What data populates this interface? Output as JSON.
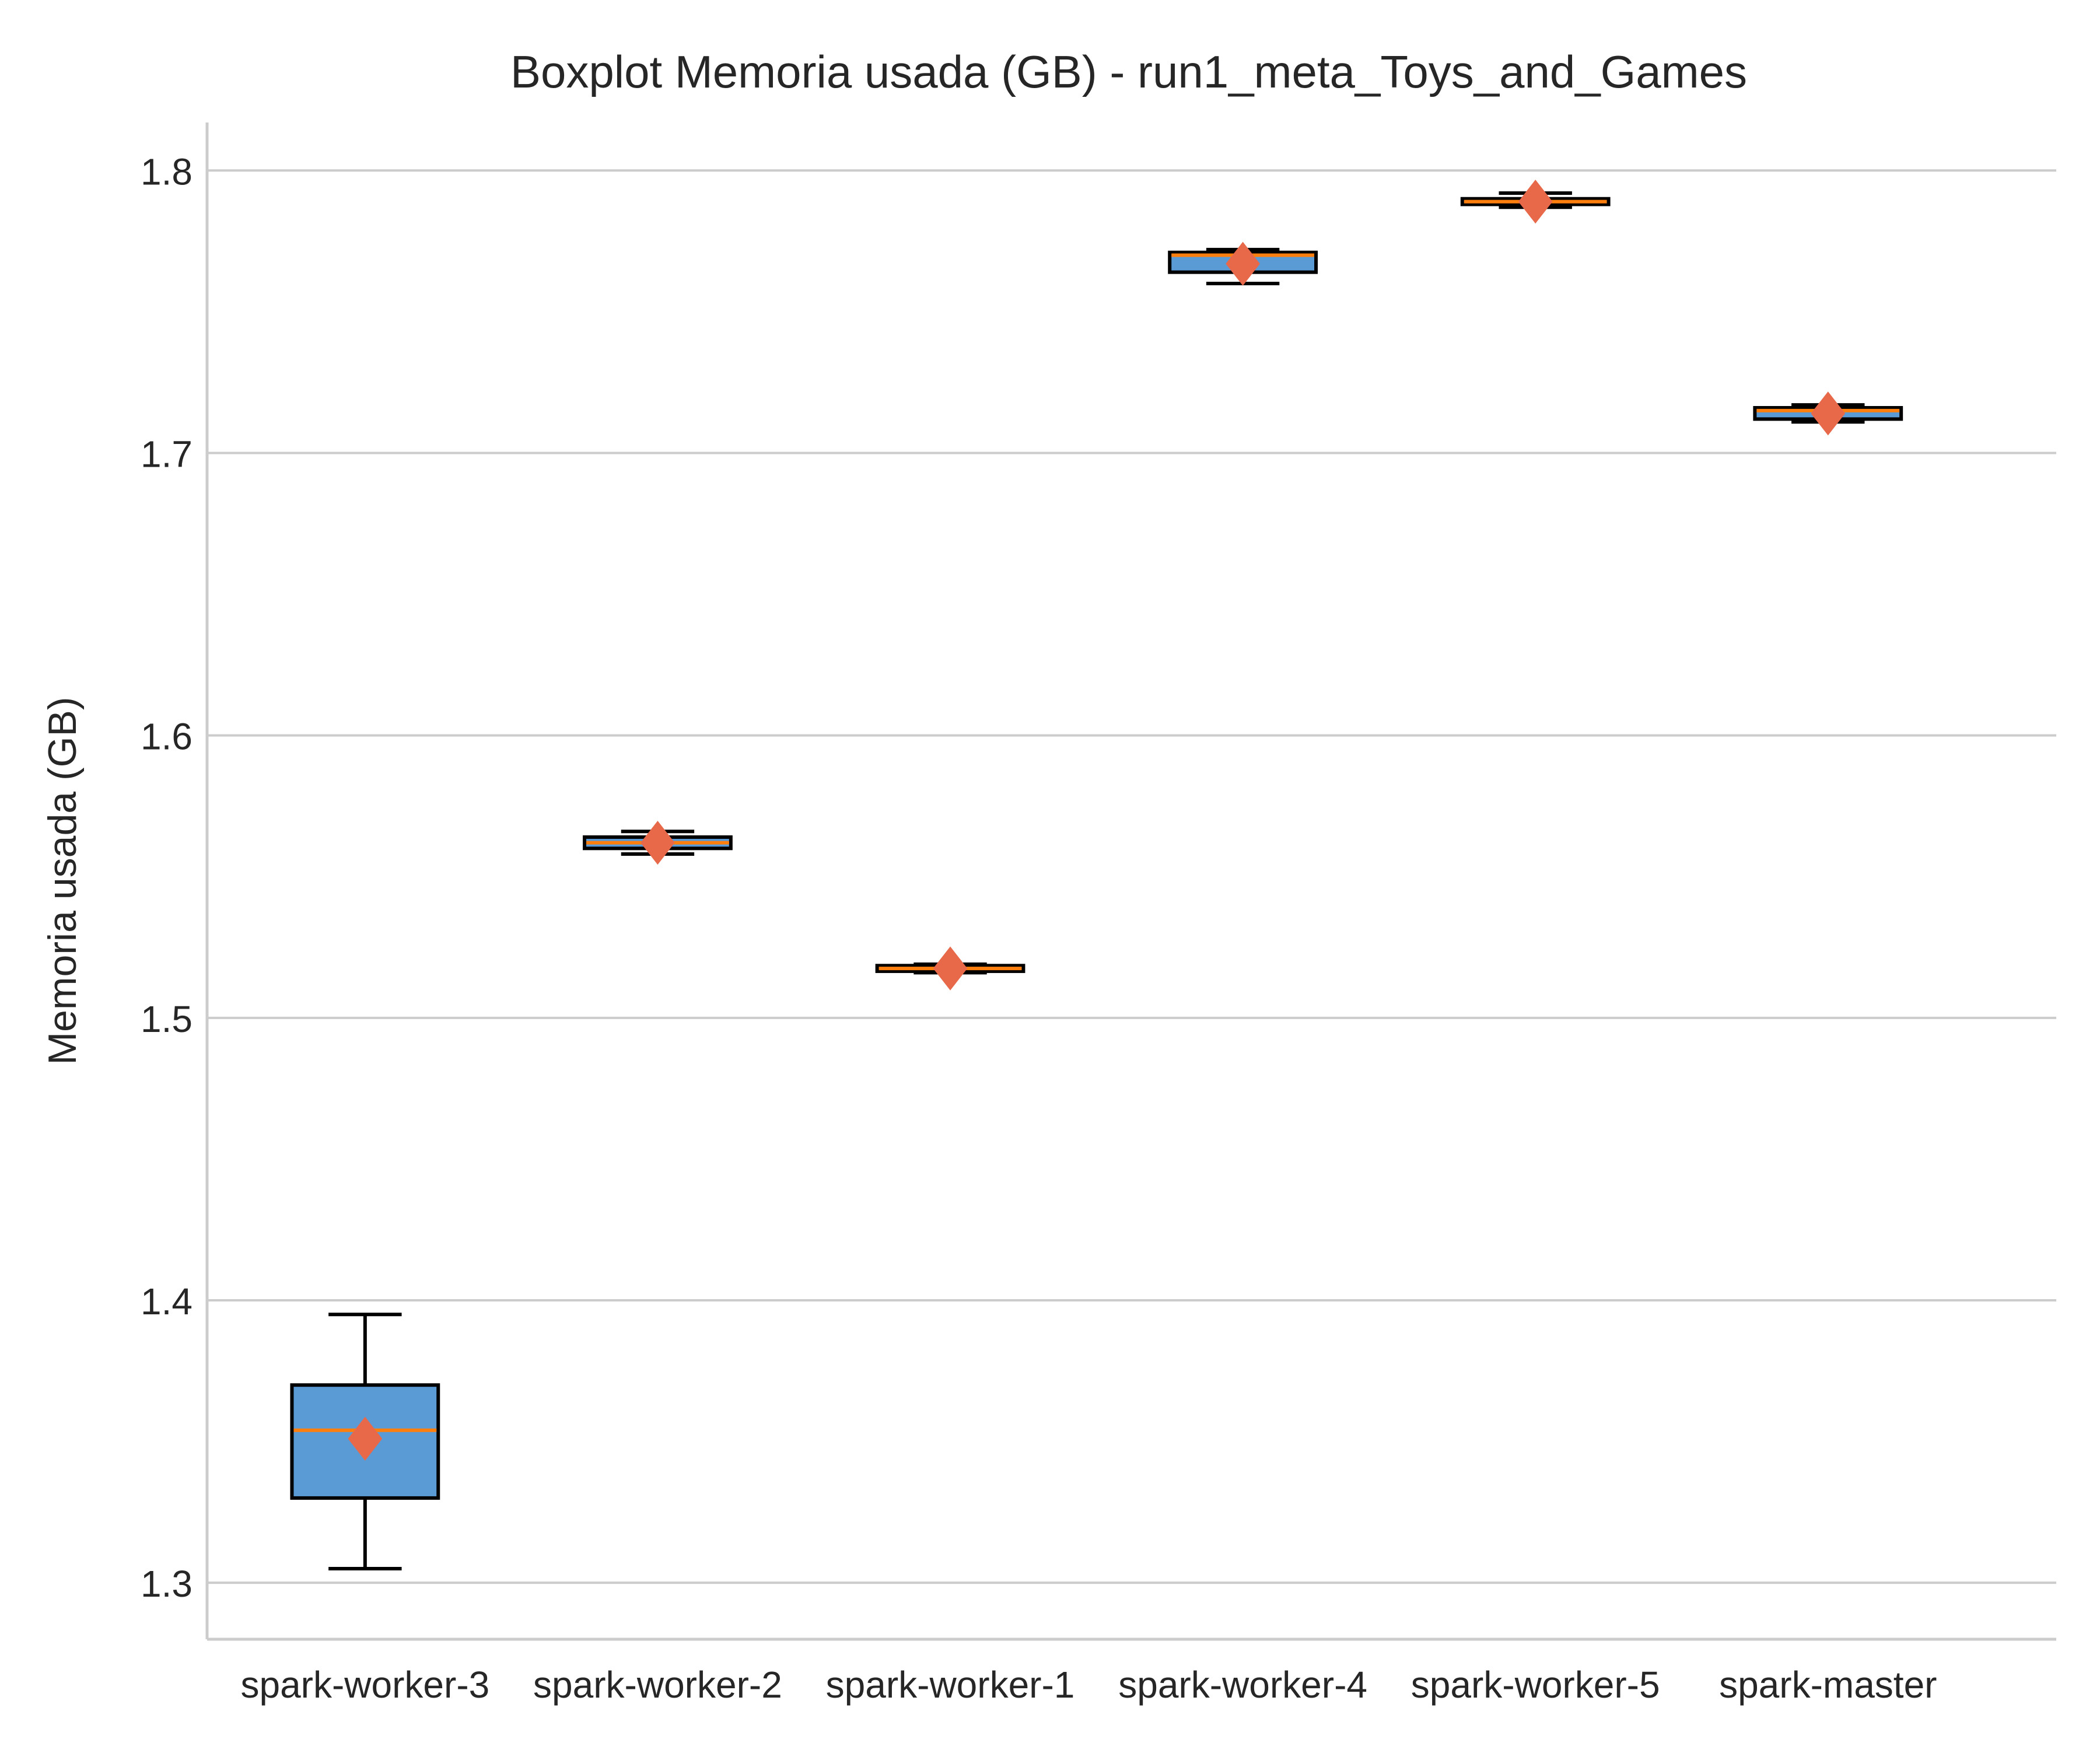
{
  "chart_data": {
    "type": "boxplot",
    "title": "Boxplot Memoria usada (GB) - run1_meta_Toys_and_Games",
    "xlabel": "",
    "ylabel": "Memoria usada (GB)",
    "ylim": [
      1.28,
      1.817
    ],
    "yticks": [
      1.3,
      1.4,
      1.5,
      1.6,
      1.7,
      1.8
    ],
    "ytick_labels": [
      "1.3",
      "1.4",
      "1.5",
      "1.6",
      "1.7",
      "1.8"
    ],
    "grid": "horizontal",
    "categories": [
      "spark-worker-3",
      "spark-worker-2",
      "spark-worker-1",
      "spark-worker-4",
      "spark-worker-5",
      "spark-master"
    ],
    "boxes": [
      {
        "category": "spark-worker-3",
        "whisker_low": 1.305,
        "q1": 1.33,
        "median": 1.354,
        "q3": 1.37,
        "whisker_high": 1.395,
        "mean": 1.351
      },
      {
        "category": "spark-worker-2",
        "whisker_low": 1.558,
        "q1": 1.56,
        "median": 1.562,
        "q3": 1.564,
        "whisker_high": 1.566,
        "mean": 1.562
      },
      {
        "category": "spark-worker-1",
        "whisker_low": 1.516,
        "q1": 1.5165,
        "median": 1.5175,
        "q3": 1.5185,
        "whisker_high": 1.519,
        "mean": 1.5175
      },
      {
        "category": "spark-worker-4",
        "whisker_low": 1.76,
        "q1": 1.764,
        "median": 1.77,
        "q3": 1.771,
        "whisker_high": 1.772,
        "mean": 1.767
      },
      {
        "category": "spark-worker-5",
        "whisker_low": 1.787,
        "q1": 1.788,
        "median": 1.789,
        "q3": 1.79,
        "whisker_high": 1.792,
        "mean": 1.789
      },
      {
        "category": "spark-master",
        "whisker_low": 1.711,
        "q1": 1.712,
        "median": 1.715,
        "q3": 1.716,
        "whisker_high": 1.717,
        "mean": 1.714
      }
    ],
    "colors": {
      "box_fill": "#5b9bd5",
      "box_edge": "#000000",
      "median": "#ff7f0e",
      "mean_marker": "#e8694a",
      "grid": "#cccccc",
      "axis": "#cccccc",
      "text": "#262626"
    },
    "mean_marker_shape": "diamond"
  }
}
